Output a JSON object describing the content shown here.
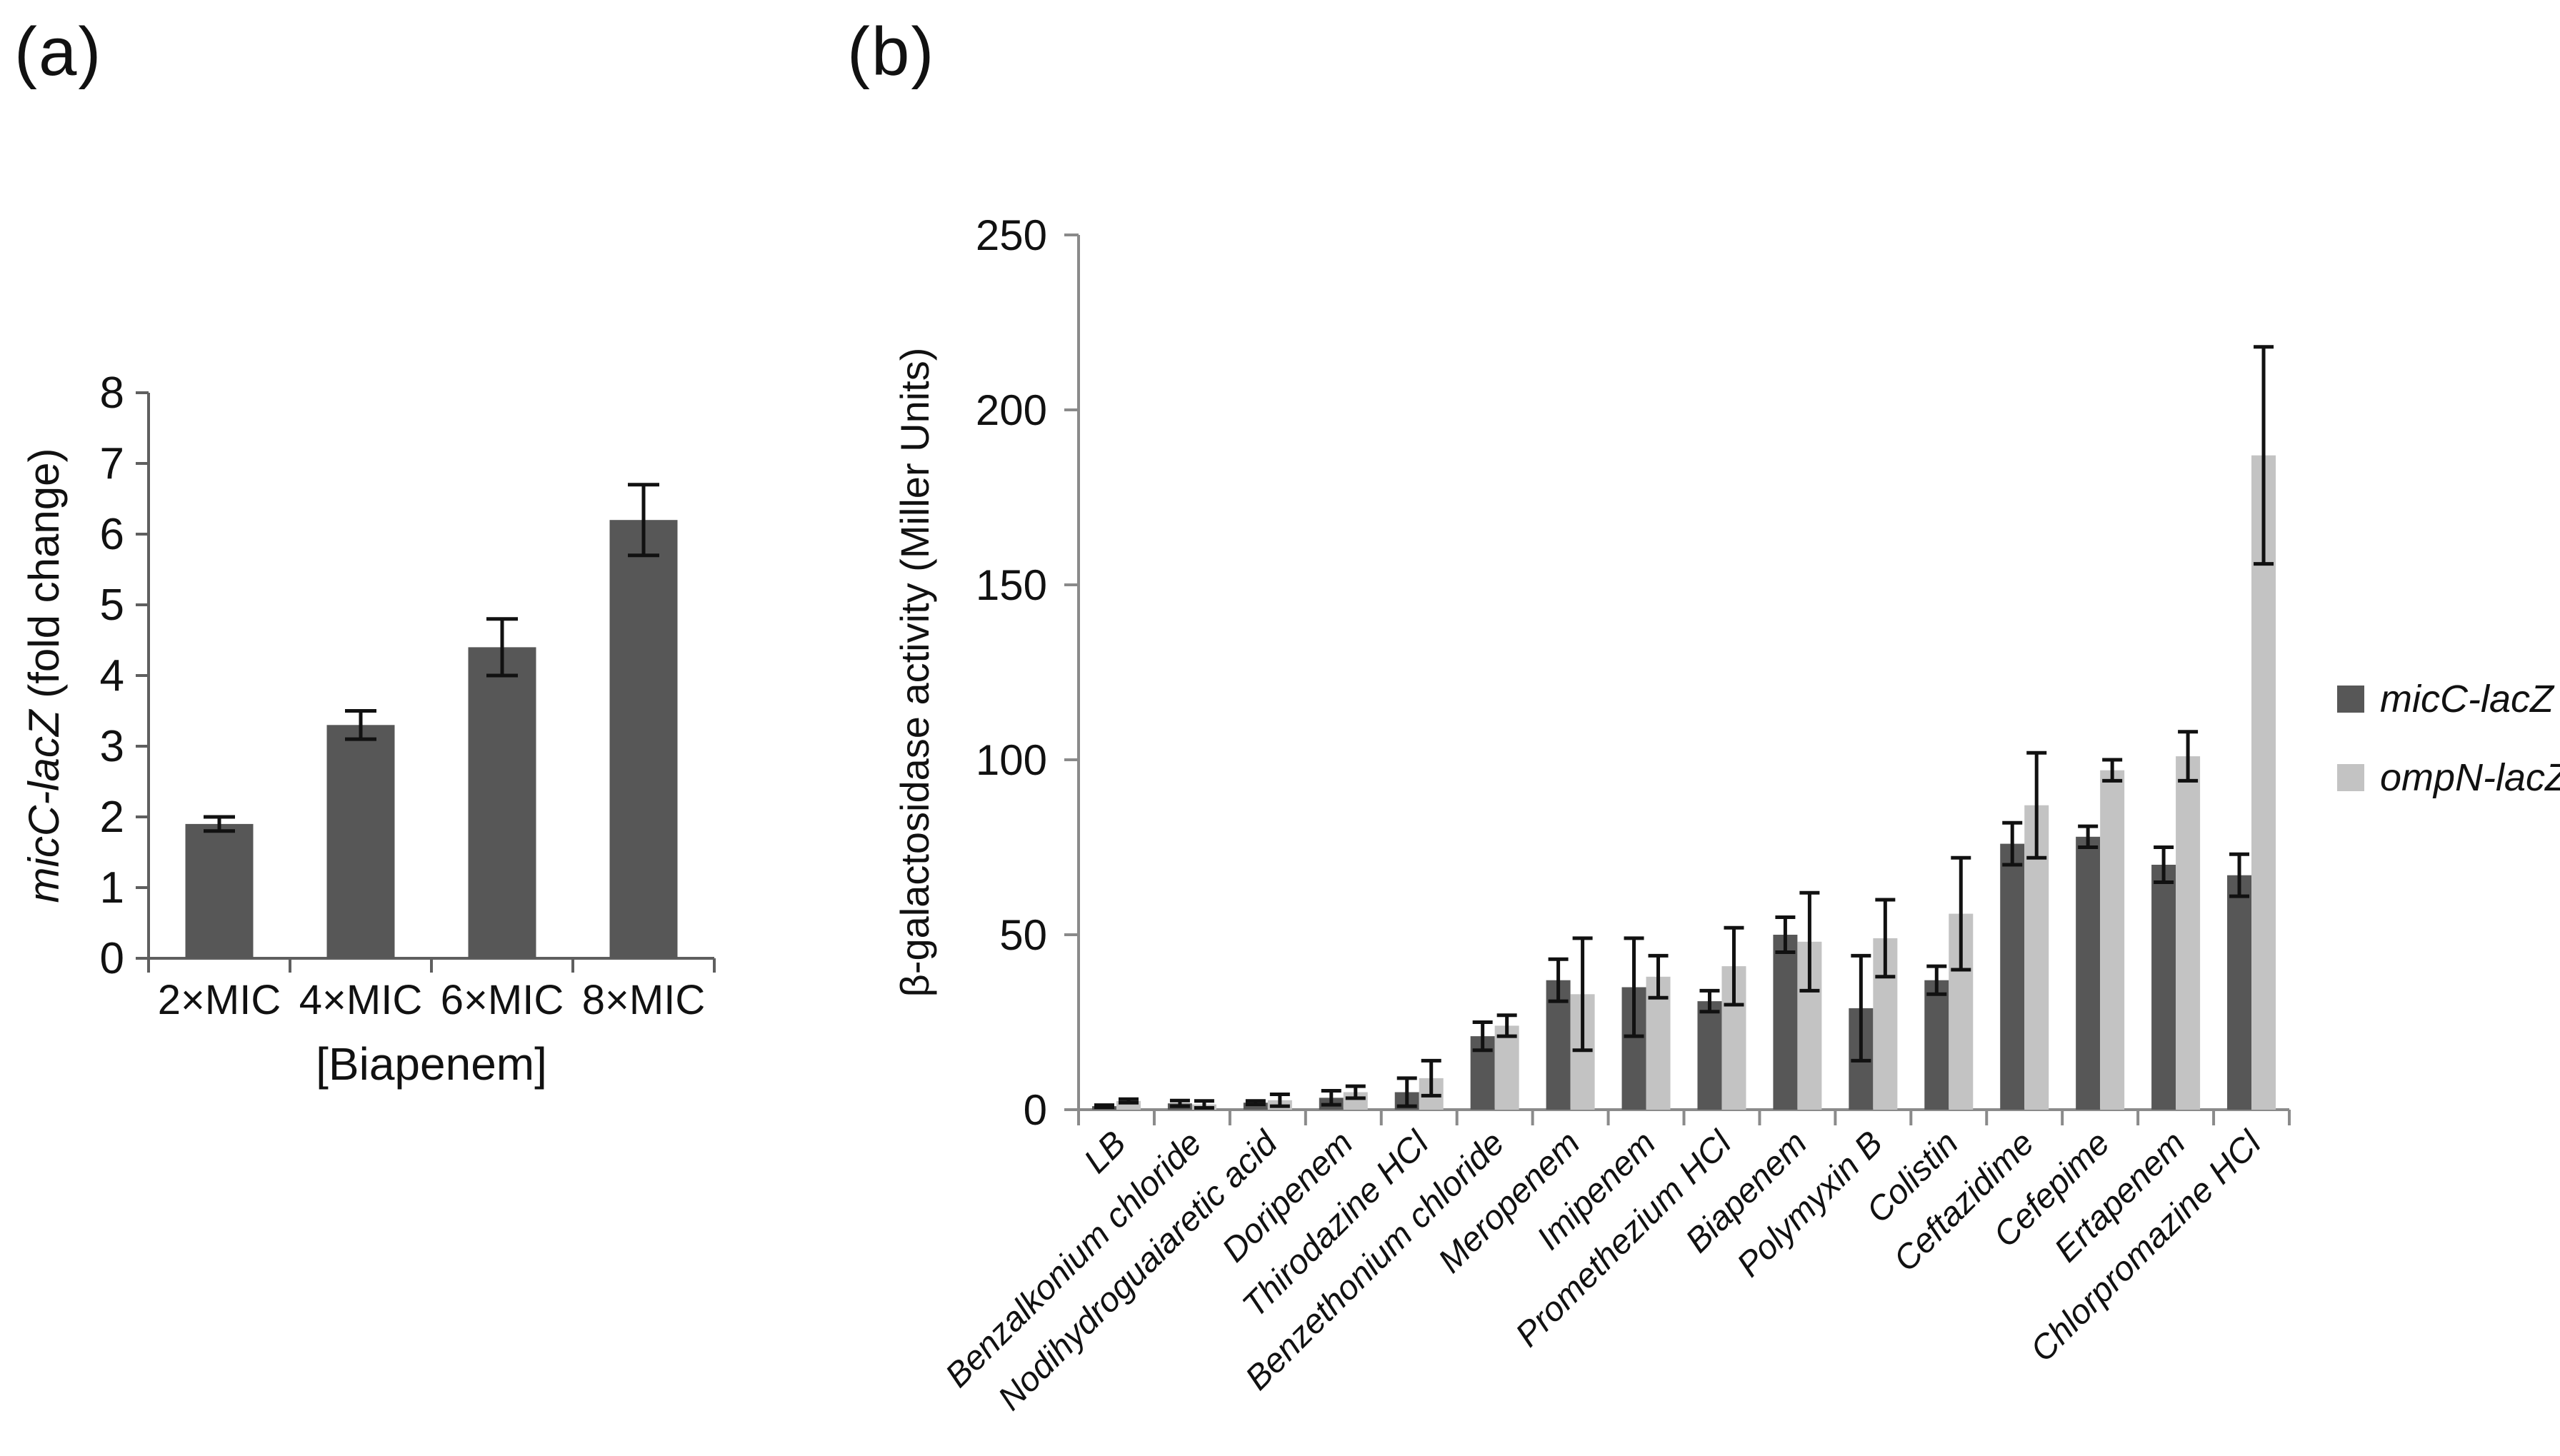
{
  "figure": {
    "panel_a_label": "(a)",
    "panel_b_label": "(b)"
  },
  "chart_data": [
    {
      "type": "bar",
      "panel": "a",
      "title": "",
      "categories": [
        "2×MIC",
        "4×MIC",
        "6×MIC",
        "8×MIC"
      ],
      "values": [
        1.9,
        3.3,
        4.4,
        6.2
      ],
      "errors": [
        0.1,
        0.2,
        0.4,
        0.5
      ],
      "ylabel_italic": "micC-lacZ",
      "ylabel_plain": " (fold change)",
      "xlabel": "[Biapenem]",
      "ylim": [
        0,
        8
      ],
      "yticks": [
        0,
        1,
        2,
        3,
        4,
        5,
        6,
        7,
        8
      ],
      "grid": "off",
      "bar_color": "#575757",
      "error_color": "#111111"
    },
    {
      "type": "grouped-bar",
      "panel": "b",
      "title": "",
      "categories": [
        "LB",
        "Benzalkonium chloride",
        "Nodihydroguaiaretic acid",
        "Doripenem",
        "Thirodazine HCl",
        "Benzethonium chloride",
        "Meropenem",
        "Imipenem",
        "Promethezium HCl",
        "Biapenem",
        "Polymyxin B",
        "Colistin",
        "Ceftazidime",
        "Cefepime",
        "Ertapenem",
        "Chlorpromazine HCl"
      ],
      "series": [
        {
          "name": "micC-lacZ",
          "color": "#575757",
          "values": [
            1,
            1.8,
            2,
            3.4,
            5,
            21,
            37,
            35,
            31,
            50,
            29,
            37,
            76,
            78,
            70,
            67
          ],
          "errors": [
            0.3,
            0.8,
            0.5,
            2,
            4,
            4,
            6,
            14,
            3,
            5,
            15,
            4,
            6,
            3,
            5,
            6
          ]
        },
        {
          "name": "ompN-lacZ",
          "color": "#c3c3c3",
          "values": [
            2.5,
            1.5,
            2.7,
            5,
            9,
            24,
            33,
            38,
            41,
            48,
            49,
            56,
            87,
            97,
            101,
            187
          ],
          "errors": [
            0.5,
            1,
            1.7,
            1.7,
            5,
            3,
            16,
            6,
            11,
            14,
            11,
            16,
            15,
            3,
            7,
            31
          ]
        }
      ],
      "ylabel": "β-galactosidase activity (Miller Units)",
      "xlabel": "",
      "ylim": [
        0,
        250
      ],
      "yticks": [
        0,
        50,
        100,
        150,
        200,
        250
      ],
      "grid": "off",
      "legend_position": "right",
      "error_color": "#111111"
    }
  ]
}
